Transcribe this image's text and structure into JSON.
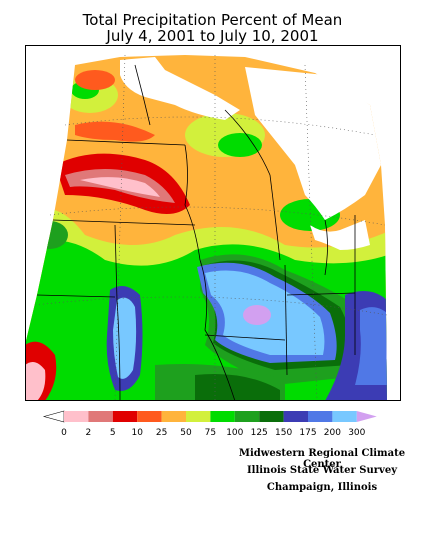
{
  "title": {
    "line1": "Total Precipitation Percent of Mean",
    "line2": "July 4, 2001 to July 10, 2001"
  },
  "legend": {
    "labels": [
      "0",
      "2",
      "5",
      "10",
      "25",
      "50",
      "75",
      "100",
      "125",
      "150",
      "175",
      "200",
      "300"
    ],
    "colors": [
      "#ffffff",
      "#ffc0cb",
      "#e07878",
      "#e00000",
      "#ff5a1e",
      "#ffb43c",
      "#d2f03c",
      "#00dc00",
      "#1ea01e",
      "#0a6e0a",
      "#3c3cb4",
      "#5078e6",
      "#78c8ff",
      "#d2a0f0"
    ]
  },
  "credits": {
    "line1": "Midwestern Regional Climate Center",
    "line2": "Illinois State Water Survey",
    "line3": "Champaign, Illinois"
  }
}
